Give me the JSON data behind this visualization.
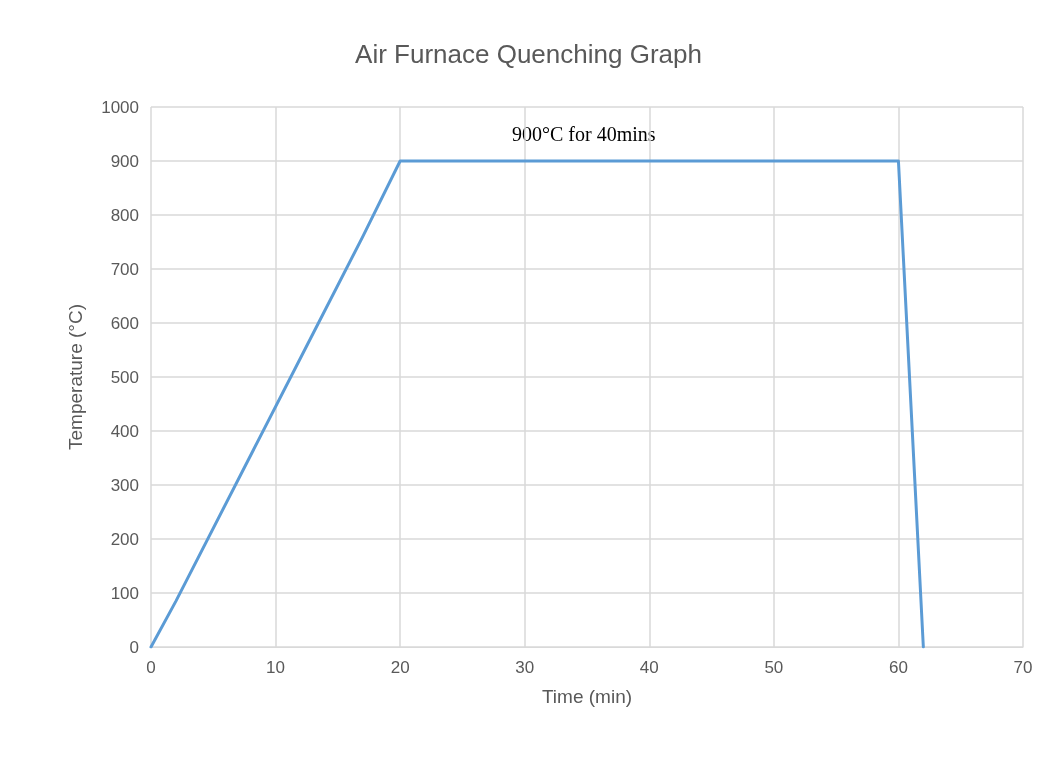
{
  "chart_data": {
    "type": "line",
    "title": "Air Furnace Quenching Graph",
    "xlabel": "Time (min)",
    "ylabel": "Temperature (°C)",
    "x": [
      0,
      2,
      13,
      17,
      20,
      60,
      62
    ],
    "series": [
      {
        "color": "#5b9bd5",
        "values": [
          0,
          85,
          580,
          760,
          900,
          900,
          0
        ]
      }
    ],
    "xlim": [
      0,
      70
    ],
    "xticks": [
      0,
      10,
      20,
      30,
      40,
      50,
      60,
      70
    ],
    "ylim": [
      0,
      1000
    ],
    "yticks": [
      0,
      100,
      200,
      300,
      400,
      500,
      600,
      700,
      800,
      900,
      1000
    ],
    "grid": true,
    "marker": "none",
    "line_style": "solid",
    "annotations": [
      "900°C for 40mins"
    ]
  }
}
